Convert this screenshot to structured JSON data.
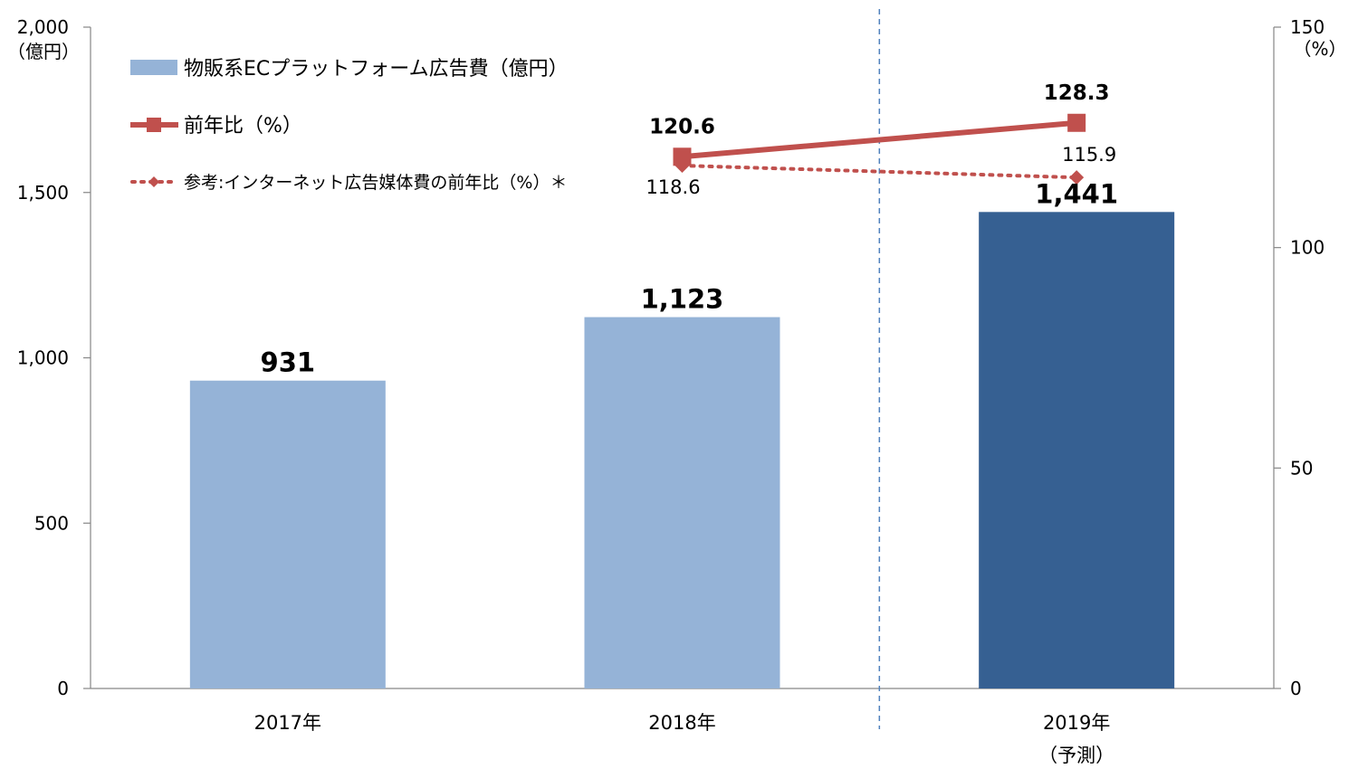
{
  "chart_data": {
    "type": "bar",
    "categories": [
      "2017年",
      "2018年",
      "2019年"
    ],
    "category_notes": [
      "",
      "",
      "（予測）"
    ],
    "series": [
      {
        "name": "物販系ECプラットフォーム広告費（億円）",
        "type": "bar",
        "axis": "left",
        "values": [
          931,
          1123,
          1441
        ],
        "labels": [
          "931",
          "1,123",
          "1,441"
        ],
        "colors": [
          "#95B3D7",
          "#95B3D7",
          "#366092"
        ]
      },
      {
        "name": "前年比（%）",
        "type": "line",
        "axis": "right",
        "values": [
          null,
          120.6,
          128.3
        ],
        "labels": [
          "",
          "120.6",
          "128.3"
        ],
        "color": "#C0504D",
        "marker": "square"
      },
      {
        "name": "参考:インターネット広告媒体費の前年比（%）＊",
        "type": "line",
        "style": "dotted",
        "axis": "right",
        "values": [
          null,
          118.6,
          115.9
        ],
        "labels": [
          "",
          "118.6",
          "115.9"
        ],
        "color": "#C0504D",
        "marker": "diamond"
      }
    ],
    "y_left": {
      "unit_label": "（億円）",
      "ylim": [
        0,
        2000
      ],
      "ticks": [
        0,
        500,
        1000,
        1500,
        2000
      ],
      "tick_labels": [
        "0",
        "500",
        "1,000",
        "1,500",
        "2,000"
      ]
    },
    "y_right": {
      "unit_label": "（%）",
      "ylim": [
        0,
        150
      ],
      "ticks": [
        0,
        50,
        100,
        150
      ],
      "tick_labels": [
        "0",
        "50",
        "100",
        "150"
      ]
    },
    "forecast_divider_after_category": 1,
    "legend_position": "top-left"
  }
}
